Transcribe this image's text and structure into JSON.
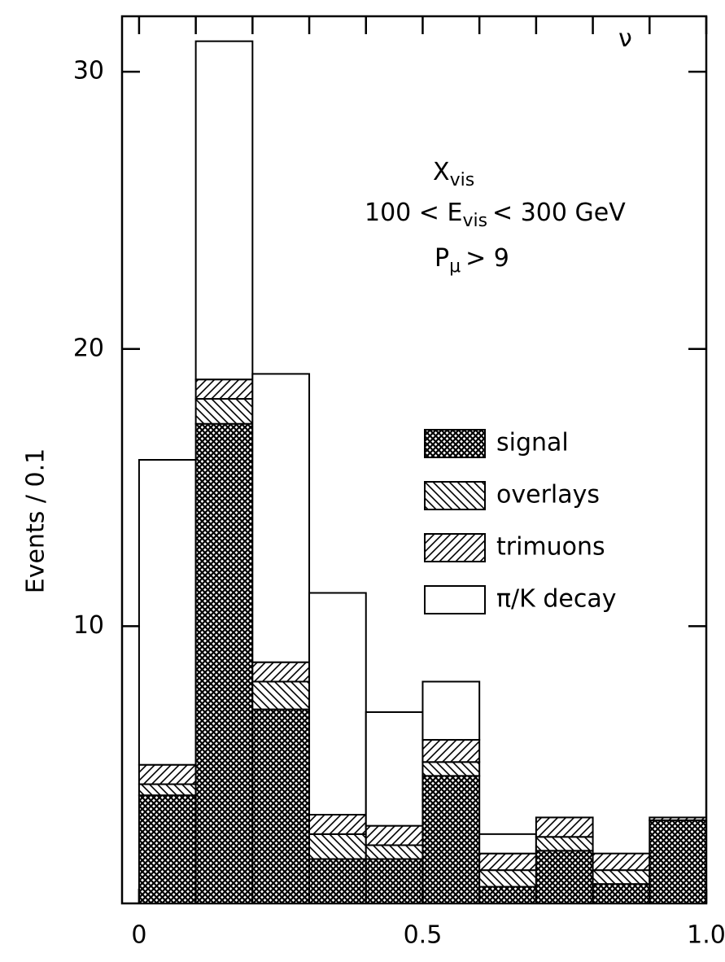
{
  "chart_data": {
    "type": "histogram",
    "bins": [
      0,
      0.1,
      0.2,
      0.3,
      0.4,
      0.5,
      0.6,
      0.7,
      0.8,
      0.9,
      1.0
    ],
    "stacked": true,
    "series": [
      {
        "name": "signal",
        "color": "#000000",
        "pattern": "crosshatch",
        "values": [
          3.9,
          17.3,
          7.0,
          1.6,
          1.6,
          4.6,
          0.6,
          1.9,
          0.7,
          3.0
        ]
      },
      {
        "name": "overlays",
        "color": "#000000",
        "pattern": "backslash",
        "values": [
          0.4,
          0.9,
          1.0,
          0.9,
          0.5,
          0.5,
          0.6,
          0.5,
          0.5,
          0
        ]
      },
      {
        "name": "trimuons",
        "color": "#000000",
        "pattern": "slash",
        "values": [
          0.7,
          0.7,
          0.7,
          0.7,
          0.7,
          0.8,
          0.6,
          0.7,
          0.6,
          0.1
        ]
      },
      {
        "name": "π/K decay",
        "color": "#000000",
        "pattern": "none",
        "values": [
          11.0,
          12.2,
          10.4,
          8.0,
          4.1,
          2.1,
          0.7,
          0,
          0,
          0
        ]
      }
    ],
    "ylabel": "Events / 0.1",
    "xlim": [
      -0.03,
      1.0
    ],
    "ylim": [
      0,
      32
    ],
    "xticks": [
      0,
      0.5,
      {
        "value": 1,
        "label": "1.0"
      }
    ],
    "yticks": [
      10,
      20,
      30
    ],
    "annotations": [
      [
        "ν"
      ],
      [
        "X",
        "vis"
      ],
      [
        "100  < E",
        "vis",
        "< 300 GeV"
      ],
      [
        "P",
        "μ",
        "> 9"
      ]
    ],
    "legend": "right"
  }
}
